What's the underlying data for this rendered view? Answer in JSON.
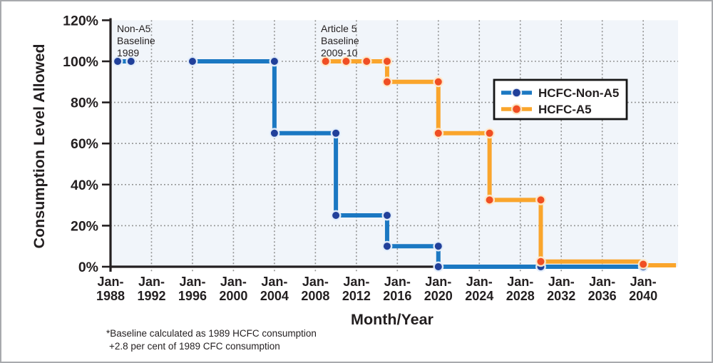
{
  "figure": {
    "background": "#FFFFFF",
    "border_color": "#A8AAAD"
  },
  "chart_data": {
    "type": "line",
    "subtype": "step",
    "title": "",
    "xlabel": "Month/Year",
    "ylabel": "Consumption Level Allowed",
    "x_tick_prefix": "Jan-",
    "x_tick_years": [
      1988,
      1992,
      1996,
      2000,
      2004,
      2008,
      2012,
      2016,
      2020,
      2024,
      2028,
      2032,
      2036,
      2040
    ],
    "y_tick_values": [
      0,
      20,
      40,
      60,
      80,
      100,
      120
    ],
    "y_tick_suffix": "%",
    "xlim": [
      1988,
      2043.4
    ],
    "ylim": [
      0,
      120
    ],
    "grid": {
      "shown": true,
      "style": "dotted",
      "color": "#8D8D8D"
    },
    "plot_bg": "#F1F5FA",
    "axis_color": "#231F20",
    "series": [
      {
        "name": "HCFC-Non-A5",
        "line_color": "#1B78C2",
        "dot_color": "#21409A",
        "segments": [
          [
            [
              1988.7,
              100
            ],
            [
              1990,
              100
            ]
          ],
          [
            [
              1996,
              100
            ],
            [
              2004,
              100
            ],
            [
              2004,
              65
            ],
            [
              2010,
              65
            ],
            [
              2010,
              25
            ],
            [
              2015,
              25
            ],
            [
              2015,
              10
            ],
            [
              2020,
              10
            ],
            [
              2020,
              0
            ],
            [
              2040,
              0
            ]
          ]
        ],
        "dots": [
          [
            1988.7,
            100
          ],
          [
            1990,
            100
          ],
          [
            1996,
            100
          ],
          [
            2004,
            100
          ],
          [
            2004,
            65
          ],
          [
            2010,
            65
          ],
          [
            2010,
            25
          ],
          [
            2015,
            25
          ],
          [
            2015,
            10
          ],
          [
            2020,
            10
          ],
          [
            2020,
            0
          ],
          [
            2030,
            0
          ],
          [
            2040,
            0
          ]
        ]
      },
      {
        "name": "HCFC-A5",
        "line_color": "#FAA52C",
        "dot_color": "#F04E23",
        "segments": [
          [
            [
              2009,
              100
            ],
            [
              2015,
              100
            ],
            [
              2015,
              90
            ],
            [
              2020,
              90
            ],
            [
              2020,
              65
            ],
            [
              2025,
              65
            ],
            [
              2025,
              32.5
            ],
            [
              2030,
              32.5
            ],
            [
              2030,
              2.5
            ],
            [
              2040,
              2.5
            ],
            [
              2040,
              0.7
            ],
            [
              2043.2,
              0.7
            ]
          ]
        ],
        "dots": [
          [
            2009,
            100
          ],
          [
            2011,
            100
          ],
          [
            2013,
            100
          ],
          [
            2015,
            100
          ],
          [
            2015,
            90
          ],
          [
            2020,
            90
          ],
          [
            2020,
            65
          ],
          [
            2025,
            65
          ],
          [
            2025,
            32.5
          ],
          [
            2030,
            32.5
          ],
          [
            2030,
            2.5
          ],
          [
            2040,
            1.2
          ]
        ]
      }
    ],
    "legend": {
      "position": "upper-right",
      "entries": [
        {
          "label": "HCFC-Non-A5",
          "line_color": "#1B78C2",
          "dot_color": "#21409A"
        },
        {
          "label": "HCFC-A5",
          "line_color": "#FAA52C",
          "dot_color": "#F04E23"
        }
      ]
    },
    "annotations": [
      {
        "id": "non_a5_baseline",
        "line1": "Non-A5",
        "line2": "Baseline",
        "line3": "1989"
      },
      {
        "id": "a5_baseline",
        "line1": "Article 5",
        "line2": "Baseline",
        "line3": "2009-10"
      }
    ]
  },
  "footnote": {
    "line1": "*Baseline calculated as 1989 HCFC consumption",
    "line2": "+2.8 per cent of 1989 CFC consumption"
  }
}
